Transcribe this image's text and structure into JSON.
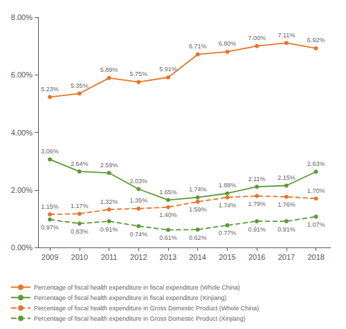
{
  "chart_data": {
    "type": "line",
    "x": [
      2009,
      2010,
      2011,
      2012,
      2013,
      2014,
      2015,
      2016,
      2017,
      2018
    ],
    "xlim": [
      2008.6,
      2018.5
    ],
    "xticks": [
      2009,
      2010,
      2011,
      2012,
      2013,
      2014,
      2015,
      2016,
      2017,
      2018
    ],
    "ylim": [
      0.0,
      8.0
    ],
    "yticks": [
      {
        "value": 0.0,
        "label": "0.00%"
      },
      {
        "value": 2.0,
        "label": "2.00%"
      },
      {
        "value": 4.0,
        "label": "4.00%"
      },
      {
        "value": 6.0,
        "label": "6.00%"
      },
      {
        "value": 8.0,
        "label": "8.00%"
      }
    ],
    "grid": false,
    "legend": "lower left",
    "data_labels": true,
    "series": [
      {
        "name": "Percentage of fiscal health expenditure in fiscal expenditure (Whole China)",
        "color": "#E8742A",
        "line_style": "solid",
        "marker": "circle",
        "values": [
          5.23,
          5.35,
          5.89,
          5.75,
          5.91,
          6.71,
          6.8,
          7.0,
          7.11,
          6.92
        ],
        "value_labels": [
          "5.23%",
          "5.35%",
          "5.89%",
          "5.75%",
          "5.91%",
          "6.71%",
          "6.80%",
          "7.00%",
          "7.11%",
          "6.92%"
        ]
      },
      {
        "name": "Percentage of fiscal health expenditure in fiscal expenditure (Xinjiang)",
        "color": "#5B9A35",
        "line_style": "solid",
        "marker": "circle",
        "values": [
          3.06,
          2.64,
          2.59,
          2.03,
          1.65,
          1.74,
          1.88,
          2.11,
          2.15,
          2.63
        ],
        "value_labels": [
          "3.06%",
          "2.64%",
          "2.59%",
          "2.03%",
          "1.65%",
          "1.74%",
          "1.88%",
          "2.11%",
          "2.15%",
          "2.63%"
        ]
      },
      {
        "name": "Percentage of fiscal health expenditure in Gross Domestic Product (Whole China)",
        "color": "#E8742A",
        "line_style": "dashed",
        "marker": "circle",
        "values": [
          1.15,
          1.17,
          1.32,
          1.35,
          1.4,
          1.59,
          1.74,
          1.79,
          1.76,
          1.7
        ],
        "value_labels": [
          "1.15%",
          "1.17%",
          "1.32%",
          "1.35%",
          "1.40%",
          "1.59%",
          "1.74%",
          "1.79%",
          "1.76%",
          "1.70%"
        ]
      },
      {
        "name": "Percentage of fiscal health expenditure in Gross Domestic Product (Xinjiang)",
        "color": "#5B9A35",
        "line_style": "dashed",
        "marker": "circle",
        "values": [
          0.97,
          0.83,
          0.91,
          0.74,
          0.61,
          0.62,
          0.77,
          0.91,
          0.91,
          1.07
        ],
        "value_labels": [
          "0.97%",
          "0.83%",
          "0.91%",
          "0.74%",
          "0.61%",
          "0.62%",
          "0.77%",
          "0.91%",
          "0.91%",
          "1.07%"
        ]
      }
    ]
  }
}
